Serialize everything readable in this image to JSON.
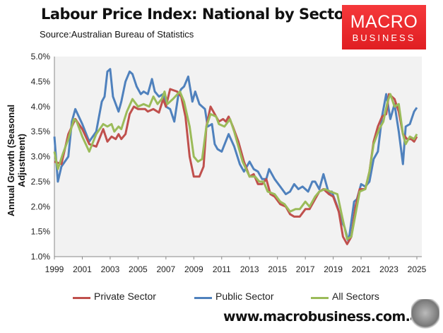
{
  "header": {
    "title": "Labour Price Index: National by Sector",
    "source": "Source:Australian Bureau of Statistics"
  },
  "logo": {
    "line1": "MACRO",
    "line2": "BUSINESS"
  },
  "footer": {
    "url": "www.macrobusiness.com.au"
  },
  "chart_data": {
    "type": "line",
    "title": "Labour Price Index: National by Sector",
    "xlabel": "",
    "ylabel": "Annual Growth (Seasonal Adjustment)",
    "xlim": [
      1999,
      2025
    ],
    "ylim": [
      1.0,
      5.0
    ],
    "x_ticks": [
      "1999",
      "2001",
      "2003",
      "2005",
      "2007",
      "2009",
      "2011",
      "2013",
      "2015",
      "2017",
      "2019",
      "2021",
      "2023",
      "2025"
    ],
    "y_ticks": [
      "1.0%",
      "1.5%",
      "2.0%",
      "2.5%",
      "3.0%",
      "3.5%",
      "4.0%",
      "4.5%",
      "5.0%"
    ],
    "grid": false,
    "legend": "bottom",
    "series": [
      {
        "name": "Private Sector",
        "color": "#c0504d",
        "points": [
          [
            1999,
            2.9
          ],
          [
            1999.5,
            2.85
          ],
          [
            2000,
            3.45
          ],
          [
            2000.5,
            3.75
          ],
          [
            2001,
            3.55
          ],
          [
            2001.5,
            3.25
          ],
          [
            2002,
            3.2
          ],
          [
            2002.5,
            3.55
          ],
          [
            2002.8,
            3.3
          ],
          [
            2003.1,
            3.4
          ],
          [
            2003.4,
            3.35
          ],
          [
            2003.6,
            3.45
          ],
          [
            2003.8,
            3.35
          ],
          [
            2004.1,
            3.45
          ],
          [
            2004.4,
            3.85
          ],
          [
            2004.7,
            4.0
          ],
          [
            2005,
            3.95
          ],
          [
            2005.5,
            3.95
          ],
          [
            2005.7,
            3.9
          ],
          [
            2006.1,
            3.95
          ],
          [
            2006.5,
            3.88
          ],
          [
            2006.8,
            4.15
          ],
          [
            2007,
            4.0
          ],
          [
            2007.3,
            4.35
          ],
          [
            2007.8,
            4.3
          ],
          [
            2008.1,
            4.2
          ],
          [
            2008.4,
            3.8
          ],
          [
            2008.7,
            3.0
          ],
          [
            2009,
            2.6
          ],
          [
            2009.4,
            2.6
          ],
          [
            2009.7,
            2.8
          ],
          [
            2009.9,
            3.6
          ],
          [
            2010.2,
            4.0
          ],
          [
            2010.5,
            3.85
          ],
          [
            2010.8,
            3.7
          ],
          [
            2011.1,
            3.75
          ],
          [
            2011.3,
            3.7
          ],
          [
            2011.5,
            3.8
          ],
          [
            2011.8,
            3.6
          ],
          [
            2012.2,
            3.3
          ],
          [
            2012.6,
            2.9
          ],
          [
            2013,
            2.6
          ],
          [
            2013.3,
            2.65
          ],
          [
            2013.6,
            2.45
          ],
          [
            2013.9,
            2.45
          ],
          [
            2014.2,
            2.55
          ],
          [
            2014.5,
            2.25
          ],
          [
            2014.8,
            2.2
          ],
          [
            2015.2,
            2.05
          ],
          [
            2015.6,
            2.0
          ],
          [
            2015.9,
            1.85
          ],
          [
            2016.2,
            1.8
          ],
          [
            2016.6,
            1.8
          ],
          [
            2017,
            1.95
          ],
          [
            2017.3,
            1.95
          ],
          [
            2017.6,
            2.1
          ],
          [
            2018,
            2.3
          ],
          [
            2018.3,
            2.35
          ],
          [
            2018.7,
            2.25
          ],
          [
            2019,
            2.2
          ],
          [
            2019.4,
            1.9
          ],
          [
            2019.7,
            1.4
          ],
          [
            2020,
            1.25
          ],
          [
            2020.3,
            1.4
          ],
          [
            2020.6,
            2.0
          ],
          [
            2020.9,
            2.35
          ],
          [
            2021.3,
            2.35
          ],
          [
            2021.6,
            2.7
          ],
          [
            2021.9,
            3.3
          ],
          [
            2022.2,
            3.6
          ],
          [
            2022.5,
            3.8
          ],
          [
            2022.8,
            3.85
          ],
          [
            2023,
            4.25
          ],
          [
            2023.4,
            4.15
          ],
          [
            2023.7,
            3.9
          ],
          [
            2024,
            3.45
          ],
          [
            2024.3,
            3.35
          ],
          [
            2024.6,
            3.35
          ],
          [
            2024.8,
            3.3
          ],
          [
            2025,
            3.4
          ]
        ]
      },
      {
        "name": "Public Sector",
        "color": "#4f81bd",
        "points": [
          [
            1999,
            3.4
          ],
          [
            1999.25,
            2.5
          ],
          [
            1999.5,
            2.8
          ],
          [
            2000,
            3.0
          ],
          [
            2000.25,
            3.7
          ],
          [
            2000.5,
            3.95
          ],
          [
            2001,
            3.65
          ],
          [
            2001.5,
            3.3
          ],
          [
            2002,
            3.5
          ],
          [
            2002.4,
            4.1
          ],
          [
            2002.6,
            4.2
          ],
          [
            2002.8,
            4.7
          ],
          [
            2003,
            4.75
          ],
          [
            2003.2,
            4.2
          ],
          [
            2003.6,
            3.9
          ],
          [
            2003.8,
            4.1
          ],
          [
            2004.1,
            4.5
          ],
          [
            2004.4,
            4.7
          ],
          [
            2004.6,
            4.65
          ],
          [
            2004.9,
            4.4
          ],
          [
            2005.2,
            4.25
          ],
          [
            2005.4,
            4.3
          ],
          [
            2005.7,
            4.25
          ],
          [
            2006,
            4.55
          ],
          [
            2006.2,
            4.3
          ],
          [
            2006.5,
            4.2
          ],
          [
            2006.8,
            4.25
          ],
          [
            2007,
            4.0
          ],
          [
            2007.3,
            3.95
          ],
          [
            2007.6,
            3.7
          ],
          [
            2007.9,
            4.25
          ],
          [
            2008.1,
            4.35
          ],
          [
            2008.3,
            4.4
          ],
          [
            2008.6,
            4.6
          ],
          [
            2008.9,
            4.1
          ],
          [
            2009.1,
            4.3
          ],
          [
            2009.4,
            4.05
          ],
          [
            2009.8,
            3.95
          ],
          [
            2010,
            3.6
          ],
          [
            2010.3,
            3.65
          ],
          [
            2010.5,
            3.25
          ],
          [
            2010.7,
            3.15
          ],
          [
            2011,
            3.1
          ],
          [
            2011.5,
            3.45
          ],
          [
            2011.9,
            3.2
          ],
          [
            2012.3,
            2.85
          ],
          [
            2012.6,
            2.7
          ],
          [
            2013,
            2.9
          ],
          [
            2013.3,
            2.75
          ],
          [
            2013.6,
            2.7
          ],
          [
            2013.9,
            2.55
          ],
          [
            2014.2,
            2.55
          ],
          [
            2014.4,
            2.75
          ],
          [
            2014.8,
            2.55
          ],
          [
            2015.2,
            2.4
          ],
          [
            2015.6,
            2.25
          ],
          [
            2015.9,
            2.3
          ],
          [
            2016.2,
            2.45
          ],
          [
            2016.5,
            2.35
          ],
          [
            2016.8,
            2.4
          ],
          [
            2017.2,
            2.3
          ],
          [
            2017.5,
            2.5
          ],
          [
            2017.7,
            2.5
          ],
          [
            2018,
            2.35
          ],
          [
            2018.3,
            2.65
          ],
          [
            2018.7,
            2.25
          ],
          [
            2018.9,
            2.3
          ],
          [
            2019.3,
            2.0
          ],
          [
            2019.6,
            1.7
          ],
          [
            2019.8,
            1.6
          ],
          [
            2020.1,
            1.3
          ],
          [
            2020.5,
            2.1
          ],
          [
            2020.7,
            2.15
          ],
          [
            2021,
            2.45
          ],
          [
            2021.3,
            2.4
          ],
          [
            2021.6,
            2.5
          ],
          [
            2021.9,
            2.95
          ],
          [
            2022.2,
            3.1
          ],
          [
            2022.5,
            3.8
          ],
          [
            2022.8,
            4.25
          ],
          [
            2023.1,
            3.75
          ],
          [
            2023.4,
            4.05
          ],
          [
            2023.7,
            3.5
          ],
          [
            2024,
            2.85
          ],
          [
            2024.2,
            3.6
          ],
          [
            2024.5,
            3.65
          ],
          [
            2024.8,
            3.9
          ],
          [
            2025,
            3.98
          ]
        ]
      },
      {
        "name": "All Sectors",
        "color": "#9bbb59",
        "points": [
          [
            1999,
            3.1
          ],
          [
            1999.25,
            2.75
          ],
          [
            1999.6,
            3.05
          ],
          [
            2000,
            3.35
          ],
          [
            2000.4,
            3.75
          ],
          [
            2000.6,
            3.7
          ],
          [
            2001,
            3.4
          ],
          [
            2001.5,
            3.1
          ],
          [
            2002,
            3.45
          ],
          [
            2002.5,
            3.65
          ],
          [
            2002.8,
            3.6
          ],
          [
            2003.1,
            3.65
          ],
          [
            2003.3,
            3.5
          ],
          [
            2003.6,
            3.6
          ],
          [
            2003.8,
            3.55
          ],
          [
            2004.2,
            3.9
          ],
          [
            2004.6,
            4.15
          ],
          [
            2005,
            4.0
          ],
          [
            2005.4,
            4.05
          ],
          [
            2005.8,
            4.0
          ],
          [
            2006.1,
            4.2
          ],
          [
            2006.4,
            4.05
          ],
          [
            2006.7,
            4.15
          ],
          [
            2006.9,
            4.3
          ],
          [
            2007.1,
            4.05
          ],
          [
            2007.5,
            4.15
          ],
          [
            2008,
            4.3
          ],
          [
            2008.3,
            4.1
          ],
          [
            2008.7,
            3.6
          ],
          [
            2009,
            3.0
          ],
          [
            2009.3,
            2.9
          ],
          [
            2009.6,
            2.95
          ],
          [
            2009.9,
            3.6
          ],
          [
            2010.2,
            3.85
          ],
          [
            2010.6,
            3.8
          ],
          [
            2010.8,
            3.65
          ],
          [
            2011.2,
            3.6
          ],
          [
            2011.6,
            3.75
          ],
          [
            2011.9,
            3.5
          ],
          [
            2012.5,
            2.9
          ],
          [
            2013,
            2.6
          ],
          [
            2013.4,
            2.6
          ],
          [
            2013.7,
            2.5
          ],
          [
            2014,
            2.5
          ],
          [
            2014.3,
            2.3
          ],
          [
            2014.8,
            2.25
          ],
          [
            2015.2,
            2.1
          ],
          [
            2015.5,
            2.05
          ],
          [
            2015.9,
            1.9
          ],
          [
            2016.3,
            1.95
          ],
          [
            2016.6,
            1.95
          ],
          [
            2017,
            2.1
          ],
          [
            2017.3,
            2.0
          ],
          [
            2017.7,
            2.2
          ],
          [
            2018,
            2.3
          ],
          [
            2018.4,
            2.35
          ],
          [
            2018.8,
            2.3
          ],
          [
            2019.3,
            2.25
          ],
          [
            2019.6,
            1.85
          ],
          [
            2020,
            1.35
          ],
          [
            2020.3,
            1.4
          ],
          [
            2020.6,
            1.85
          ],
          [
            2020.9,
            2.3
          ],
          [
            2021.3,
            2.35
          ],
          [
            2021.6,
            2.7
          ],
          [
            2021.9,
            3.25
          ],
          [
            2022.3,
            3.55
          ],
          [
            2022.6,
            3.7
          ],
          [
            2022.9,
            4.1
          ],
          [
            2023.1,
            4.25
          ],
          [
            2023.4,
            4.0
          ],
          [
            2023.7,
            4.05
          ],
          [
            2024,
            3.45
          ],
          [
            2024.2,
            3.25
          ],
          [
            2024.5,
            3.4
          ],
          [
            2024.8,
            3.35
          ],
          [
            2025,
            3.45
          ]
        ]
      }
    ]
  }
}
